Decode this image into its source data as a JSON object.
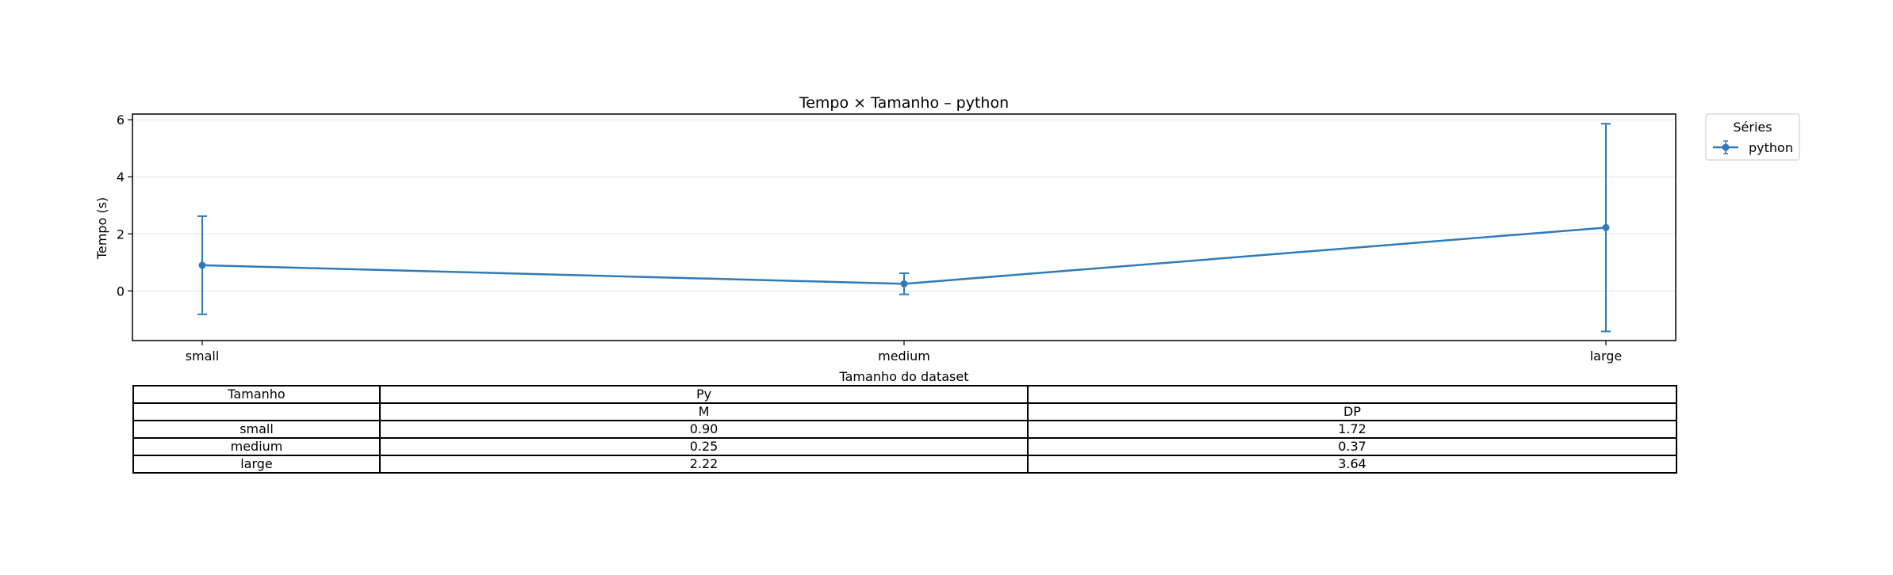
{
  "chart_data": {
    "type": "line",
    "title": "Tempo × Tamanho – python",
    "xlabel": "Tamanho do dataset",
    "ylabel": "Tempo (s)",
    "categories": [
      "small",
      "medium",
      "large"
    ],
    "series": [
      {
        "name": "python",
        "values": [
          0.9,
          0.25,
          2.22
        ],
        "errors": [
          1.72,
          0.37,
          3.64
        ],
        "color": "#2f7ab8"
      }
    ],
    "ylim": [
      -1.74,
      6.2
    ],
    "yticks": [
      0,
      2,
      4,
      6
    ],
    "grid": true,
    "legend": {
      "title": "Séries",
      "placement": "outside-top-right"
    }
  },
  "table": {
    "header_row1": [
      "Tamanho",
      "Py",
      ""
    ],
    "header_row2": [
      "",
      "M",
      "DP"
    ],
    "rows": [
      [
        "small",
        "0.90",
        "1.72"
      ],
      [
        "medium",
        "0.25",
        "0.37"
      ],
      [
        "large",
        "2.22",
        "3.64"
      ]
    ]
  }
}
